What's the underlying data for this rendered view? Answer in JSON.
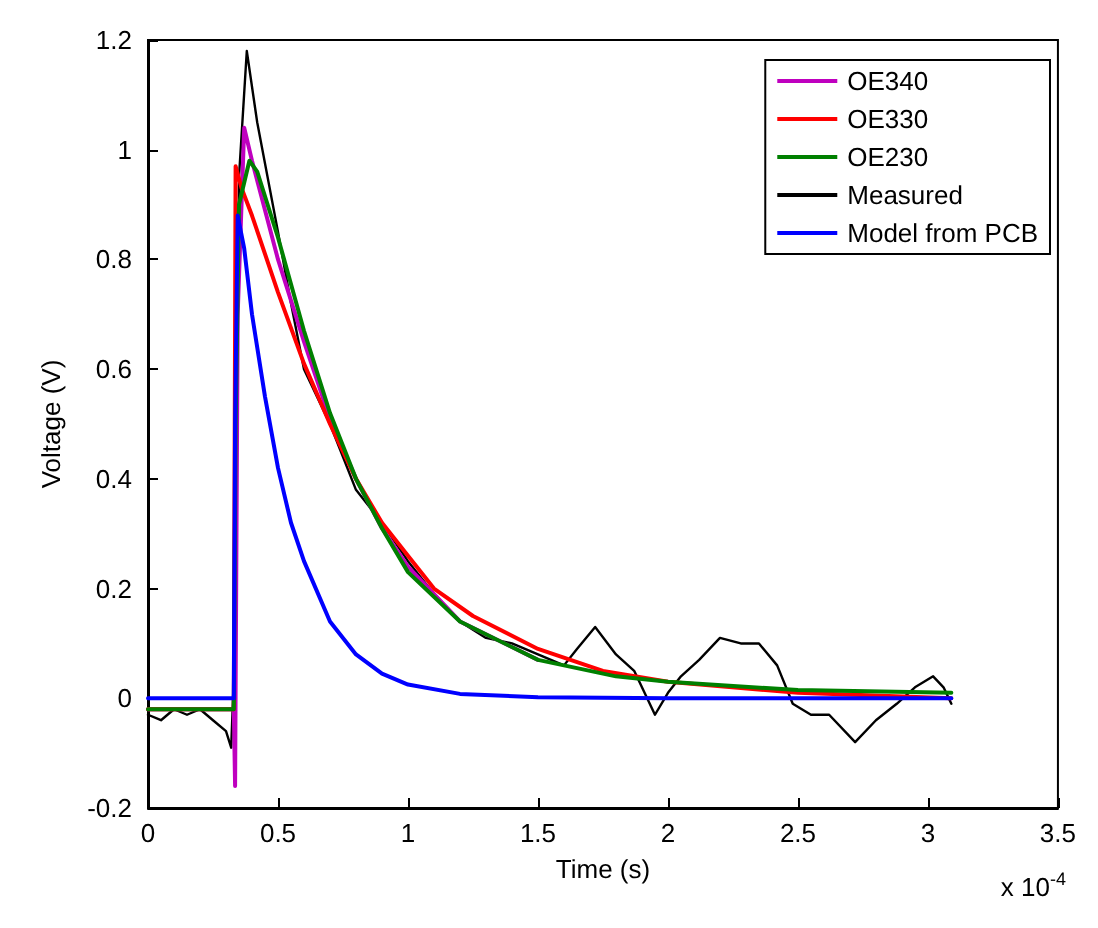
{
  "chart_data": {
    "type": "line",
    "xlabel": "Time (s)",
    "ylabel": "Voltage (V)",
    "annotations": [
      "x 10$^{-4}$"
    ],
    "xlim": [
      0,
      3.5
    ],
    "xticks": [
      0,
      0.5,
      1,
      1.5,
      2,
      2.5,
      3,
      3.5
    ],
    "ylim": [
      -0.2,
      1.2
    ],
    "yticks": [
      -0.2,
      0,
      0.2,
      0.4,
      0.6,
      0.8,
      1,
      1.2
    ],
    "grid": false,
    "legend": "top right",
    "marker": "none",
    "line_style": "solid",
    "series": [
      {
        "name": "Measured",
        "color": "#000000",
        "x": [
          0,
          0.05,
          0.1,
          0.15,
          0.2,
          0.25,
          0.3,
          0.32,
          0.335,
          0.35,
          0.38,
          0.42,
          0.5,
          0.55,
          0.6,
          0.7,
          0.8,
          0.9,
          1.0,
          1.1,
          1.2,
          1.3,
          1.4,
          1.5,
          1.6,
          1.65,
          1.72,
          1.8,
          1.87,
          1.95,
          2.0,
          2.05,
          2.12,
          2.2,
          2.28,
          2.35,
          2.42,
          2.48,
          2.55,
          2.62,
          2.72,
          2.8,
          2.88,
          2.95,
          3.02,
          3.06,
          3.09
        ],
        "values": [
          -0.03,
          -0.04,
          -0.02,
          -0.03,
          -0.02,
          -0.04,
          -0.06,
          -0.09,
          0.1,
          0.95,
          1.18,
          1.05,
          0.85,
          0.72,
          0.6,
          0.5,
          0.38,
          0.32,
          0.25,
          0.19,
          0.14,
          0.11,
          0.1,
          0.08,
          0.06,
          0.09,
          0.13,
          0.08,
          0.05,
          -0.03,
          0.01,
          0.04,
          0.07,
          0.11,
          0.1,
          0.1,
          0.06,
          -0.01,
          -0.03,
          -0.03,
          -0.08,
          -0.04,
          -0.01,
          0.02,
          0.04,
          0.02,
          -0.01
        ]
      },
      {
        "name": "OE340",
        "color": "#bf00bf",
        "x": [
          0,
          0.3,
          0.33,
          0.335,
          0.345,
          0.37,
          0.4,
          0.5,
          0.6,
          0.7,
          0.8,
          0.9,
          1.0,
          1.2,
          1.5
        ],
        "values": [
          -0.02,
          -0.02,
          -0.02,
          -0.16,
          0.7,
          1.04,
          0.98,
          0.8,
          0.65,
          0.51,
          0.4,
          0.31,
          0.24,
          0.14,
          0.07
        ]
      },
      {
        "name": "OE330",
        "color": "#ff0000",
        "x": [
          0,
          0.3,
          0.33,
          0.337,
          0.36,
          0.4,
          0.5,
          0.6,
          0.7,
          0.8,
          0.9,
          1.0,
          1.1,
          1.25,
          1.5,
          1.75,
          2.0,
          2.5,
          3.09
        ],
        "values": [
          -0.02,
          -0.02,
          -0.02,
          0.97,
          0.93,
          0.88,
          0.74,
          0.61,
          0.5,
          0.4,
          0.32,
          0.26,
          0.2,
          0.15,
          0.09,
          0.05,
          0.03,
          0.01,
          0.0
        ]
      },
      {
        "name": "OE230",
        "color": "#008000",
        "x": [
          0,
          0.3,
          0.33,
          0.337,
          0.35,
          0.39,
          0.42,
          0.5,
          0.6,
          0.7,
          0.8,
          0.9,
          1.0,
          1.2,
          1.5,
          1.8,
          2.0,
          2.5,
          3.09
        ],
        "values": [
          -0.02,
          -0.02,
          -0.02,
          0.5,
          0.9,
          0.98,
          0.96,
          0.84,
          0.67,
          0.52,
          0.4,
          0.31,
          0.23,
          0.14,
          0.07,
          0.04,
          0.03,
          0.015,
          0.01
        ]
      },
      {
        "name": "Model from PCB",
        "color": "#0000ff",
        "x": [
          0,
          0.33,
          0.335,
          0.345,
          0.37,
          0.4,
          0.45,
          0.5,
          0.55,
          0.6,
          0.7,
          0.8,
          0.9,
          1.0,
          1.2,
          1.5,
          2.0,
          3.09
        ],
        "values": [
          0,
          0,
          0.5,
          0.88,
          0.82,
          0.7,
          0.55,
          0.42,
          0.32,
          0.25,
          0.14,
          0.08,
          0.045,
          0.025,
          0.008,
          0.002,
          0,
          0
        ]
      }
    ]
  }
}
